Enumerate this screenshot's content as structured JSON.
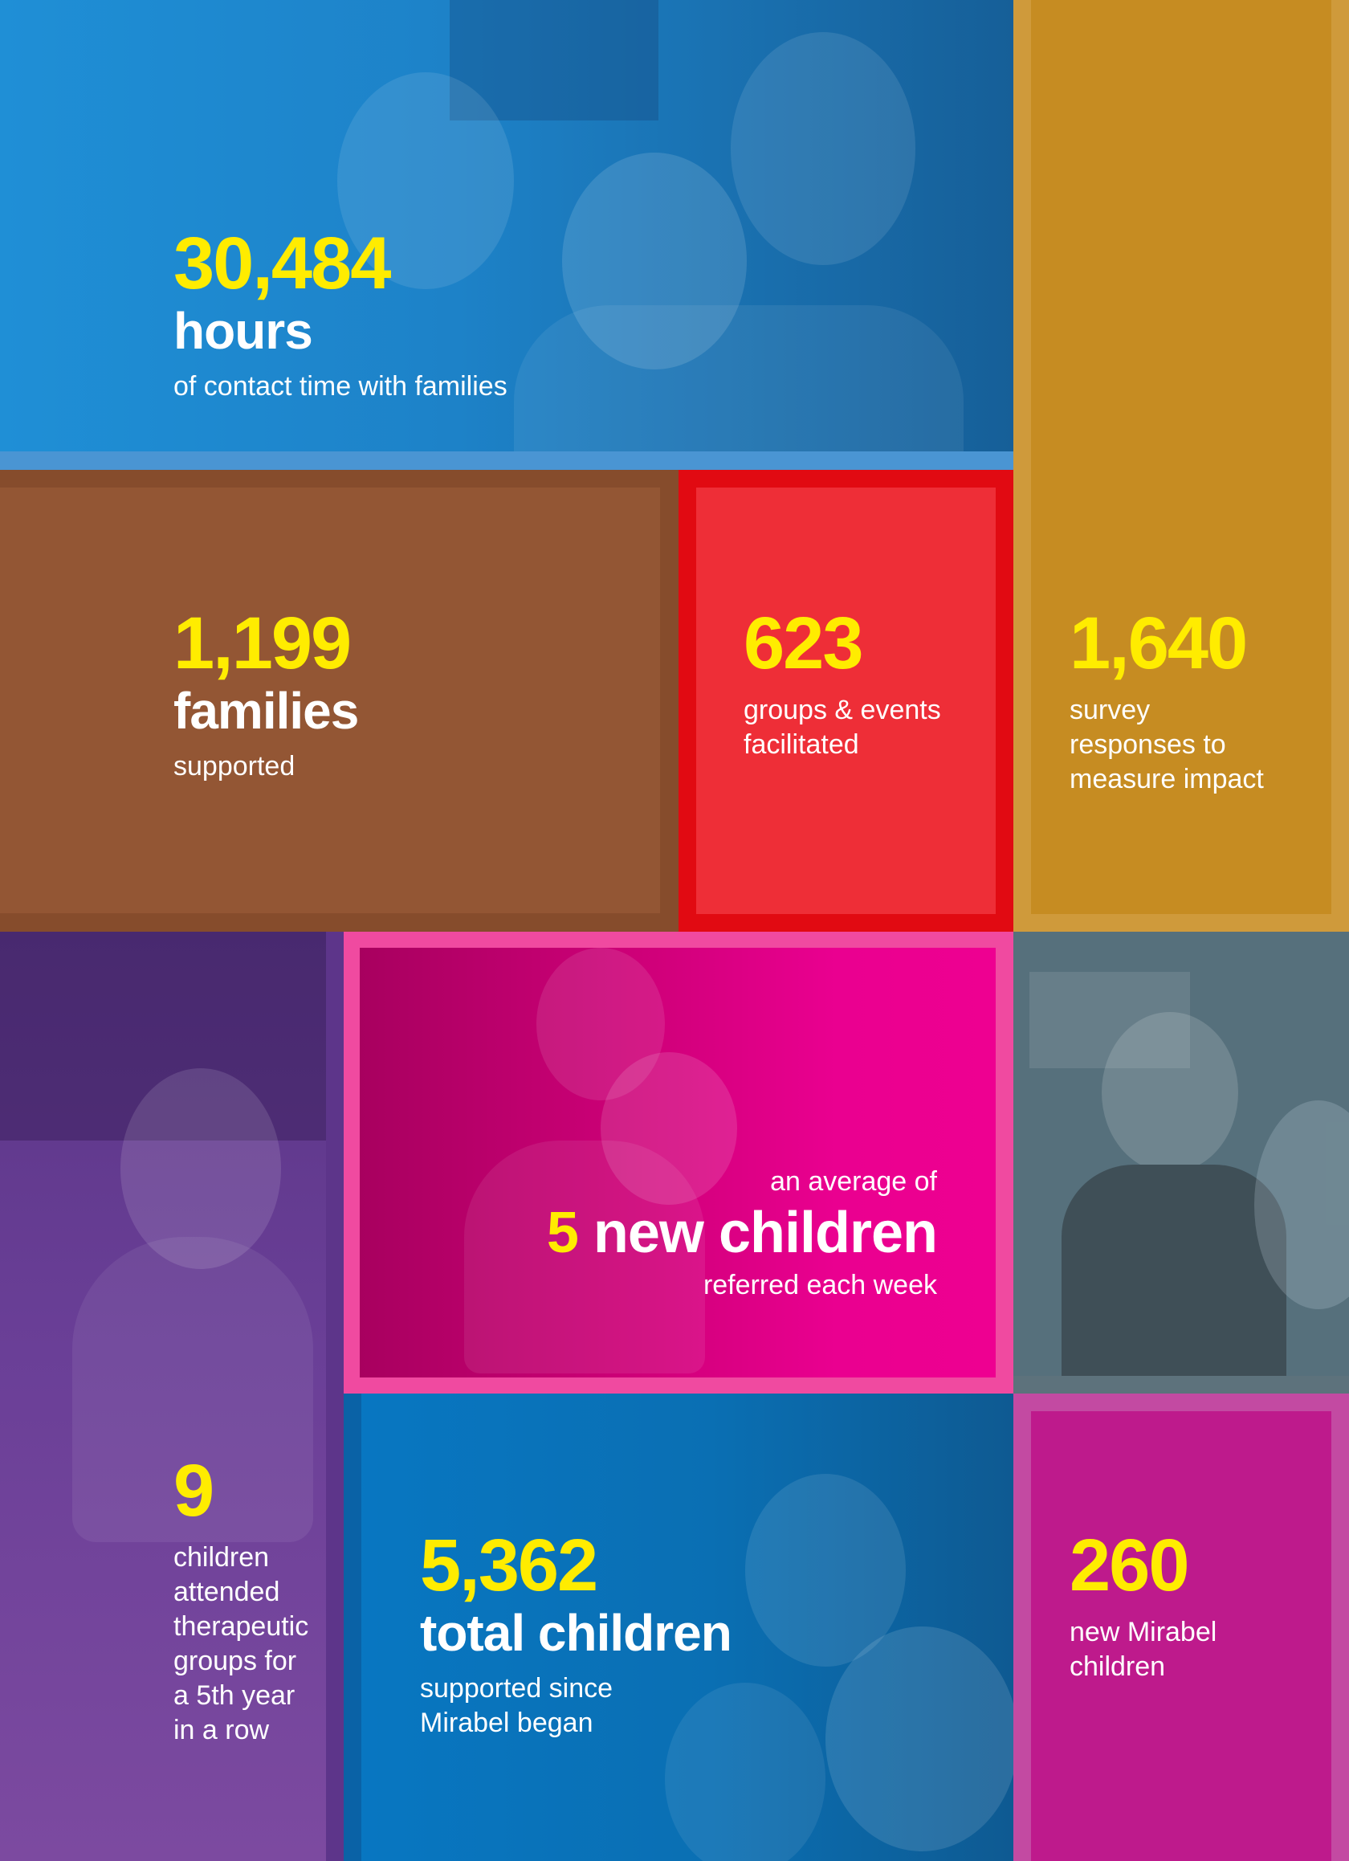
{
  "colors": {
    "highlight": "#ffec00",
    "blue_tile": "#1f86cc",
    "brown_tile": "#935634",
    "red_tile": "#ee2e37",
    "red_frame": "#e10a12",
    "gold_tile": "#c68c22",
    "gold_frame": "#cf9a3b",
    "purple_tile": "#6e3f97",
    "pink_tile": "#ea0090",
    "grey_tile": "#4d6570",
    "blue2_tile": "#0873bb",
    "magenta_tile": "#be1a8c"
  },
  "tiles": {
    "contact_hours": {
      "number": "30,484",
      "headline": "hours",
      "caption": "of contact time with families",
      "photo": "photo-three-girls-and-woman"
    },
    "families": {
      "number": "1,199",
      "headline": "families",
      "caption": "supported"
    },
    "groups_events": {
      "number": "623",
      "caption_line1": "groups & events",
      "caption_line2": "facilitated"
    },
    "survey": {
      "number": "1,640",
      "caption_line1": "survey",
      "caption_line2": "responses to",
      "caption_line3": "measure impact"
    },
    "photo_girl_purple": {
      "photo": "photo-girl-smiling-outdoors"
    },
    "new_children": {
      "intro": "an average of",
      "number": "5",
      "headline": "new children",
      "caption": "referred each week",
      "photo": "photo-two-children-playing"
    },
    "photo_girl_grey": {
      "photo": "photo-girl-on-verandah"
    },
    "therapeutic": {
      "number": "9",
      "caption_line1": "children",
      "caption_line2": "attended",
      "caption_line3": "therapeutic",
      "caption_line4": "groups for",
      "caption_line5": "a 5th year",
      "caption_line6": "in a row"
    },
    "total_children": {
      "number": "5,362",
      "headline": "total children",
      "caption_line1": "supported since",
      "caption_line2": "Mirabel began",
      "photo": "photo-group-of-smiling-children"
    },
    "new_mirabel": {
      "number": "260",
      "caption_line1": "new Mirabel",
      "caption_line2": "children"
    }
  }
}
